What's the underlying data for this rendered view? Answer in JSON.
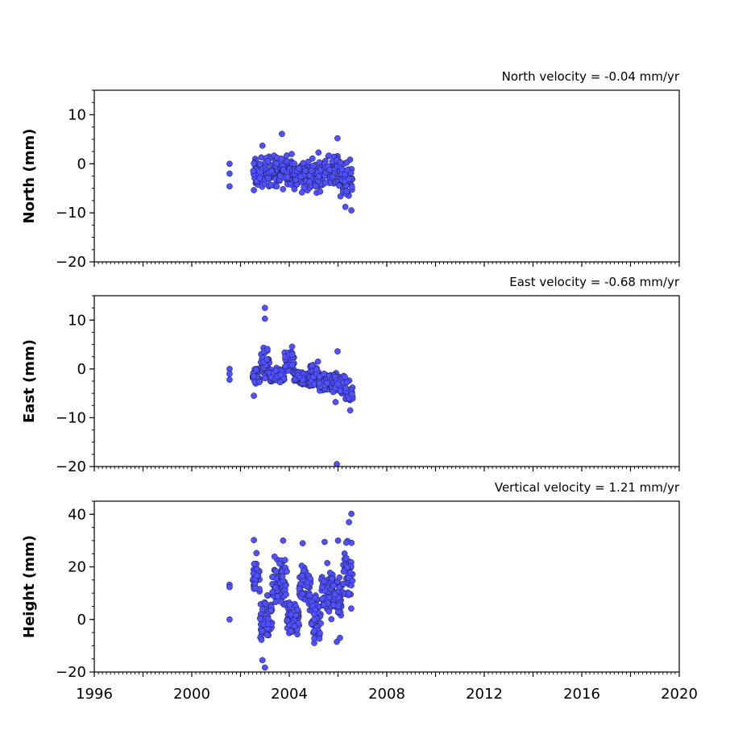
{
  "chart_data": [
    {
      "type": "scatter",
      "title": "North velocity = -0.04 mm/yr",
      "ylabel": "North (mm)",
      "xlabel": "",
      "xlim": [
        1996,
        2020
      ],
      "ylim": [
        -20,
        15
      ],
      "yticks": [
        {
          "v": 10,
          "label": "10"
        },
        {
          "v": 0,
          "label": "0"
        },
        {
          "v": -10,
          "label": "−10"
        },
        {
          "v": -20,
          "label": "−20"
        }
      ],
      "xtick_labels_shown": false,
      "marker_color": "#5050ff",
      "series": [
        {
          "points": [
            [
              2001.55,
              0.0
            ],
            [
              2001.55,
              -2.0
            ],
            [
              2001.55,
              -4.6
            ],
            [
              2003.7,
              6.1
            ],
            [
              2005.98,
              5.2
            ],
            [
              2006.55,
              -9.5
            ],
            [
              2002.9,
              3.7
            ],
            [
              2004.1,
              2.0
            ],
            [
              2005.2,
              2.3
            ],
            [
              2006.3,
              -8.8
            ]
          ],
          "bands": [
            {
              "x0": 2002.5,
              "x1": 2003.0,
              "lo": -6.5,
              "hi": 2.5
            },
            {
              "x0": 2003.0,
              "x1": 2003.6,
              "lo": -6.0,
              "hi": 3.0
            },
            {
              "x0": 2003.6,
              "x1": 2004.2,
              "lo": -6.0,
              "hi": 2.5
            },
            {
              "x0": 2004.2,
              "x1": 2004.8,
              "lo": -6.5,
              "hi": 2.0
            },
            {
              "x0": 2004.8,
              "x1": 2005.4,
              "lo": -6.5,
              "hi": 2.0
            },
            {
              "x0": 2005.4,
              "x1": 2006.0,
              "lo": -5.0,
              "hi": 3.0
            },
            {
              "x0": 2006.0,
              "x1": 2006.6,
              "lo": -8.0,
              "hi": 2.0
            }
          ]
        }
      ]
    },
    {
      "type": "scatter",
      "title": "East velocity = -0.68 mm/yr",
      "ylabel": "East (mm)",
      "xlabel": "",
      "xlim": [
        1996,
        2020
      ],
      "ylim": [
        -20,
        15
      ],
      "yticks": [
        {
          "v": 10,
          "label": "10"
        },
        {
          "v": 0,
          "label": "0"
        },
        {
          "v": -10,
          "label": "−10"
        },
        {
          "v": -20,
          "label": "−20"
        }
      ],
      "xtick_labels_shown": false,
      "marker_color": "#5050ff",
      "series": [
        {
          "points": [
            [
              2001.55,
              0.0
            ],
            [
              2001.55,
              -1.0
            ],
            [
              2001.55,
              -2.2
            ],
            [
              2003.0,
              12.5
            ],
            [
              2003.0,
              10.3
            ],
            [
              2005.95,
              -19.5
            ],
            [
              2005.98,
              3.6
            ],
            [
              2002.55,
              -5.5
            ],
            [
              2006.5,
              -8.5
            ],
            [
              2005.9,
              -6.8
            ]
          ],
          "bands": [
            {
              "x0": 2002.5,
              "x1": 2002.8,
              "lo": -4.0,
              "hi": 0.5
            },
            {
              "x0": 2002.8,
              "x1": 2003.2,
              "lo": -3.0,
              "hi": 5.5
            },
            {
              "x0": 2003.2,
              "x1": 2003.8,
              "lo": -3.5,
              "hi": 0.5
            },
            {
              "x0": 2003.8,
              "x1": 2004.2,
              "lo": -2.5,
              "hi": 5.5
            },
            {
              "x0": 2004.2,
              "x1": 2004.8,
              "lo": -4.5,
              "hi": 0.0
            },
            {
              "x0": 2004.8,
              "x1": 2005.2,
              "lo": -6.0,
              "hi": 3.0
            },
            {
              "x0": 2005.2,
              "x1": 2005.8,
              "lo": -5.5,
              "hi": 0.0
            },
            {
              "x0": 2005.8,
              "x1": 2006.3,
              "lo": -6.0,
              "hi": 0.0
            },
            {
              "x0": 2006.3,
              "x1": 2006.6,
              "lo": -8.0,
              "hi": -2.0
            }
          ]
        }
      ]
    },
    {
      "type": "scatter",
      "title": "Vertical velocity = 1.21 mm/yr",
      "ylabel": "Height (mm)",
      "xlabel": "",
      "xlim": [
        1996,
        2020
      ],
      "ylim": [
        -20,
        45
      ],
      "yticks": [
        {
          "v": 40,
          "label": "40"
        },
        {
          "v": 20,
          "label": "20"
        },
        {
          "v": 0,
          "label": "0"
        },
        {
          "v": -20,
          "label": "−20"
        }
      ],
      "xticks": [
        {
          "v": 1996,
          "label": "1996"
        },
        {
          "v": 2000,
          "label": "2000"
        },
        {
          "v": 2004,
          "label": "2004"
        },
        {
          "v": 2008,
          "label": "2008"
        },
        {
          "v": 2012,
          "label": "2012"
        },
        {
          "v": 2016,
          "label": "2016"
        },
        {
          "v": 2020,
          "label": "2020"
        }
      ],
      "xtick_labels_shown": true,
      "marker_color": "#5050ff",
      "series": [
        {
          "points": [
            [
              2001.55,
              13.2
            ],
            [
              2001.55,
              12.3
            ],
            [
              2001.55,
              0.0
            ],
            [
              2006.55,
              40.2
            ],
            [
              2006.45,
              37.0
            ],
            [
              2003.0,
              -18.3
            ],
            [
              2002.9,
              -15.5
            ],
            [
              2003.75,
              30.0
            ],
            [
              2004.55,
              29.0
            ],
            [
              2005.45,
              29.5
            ],
            [
              2006.0,
              30.0
            ],
            [
              2002.55,
              30.2
            ],
            [
              2005.95,
              -8.5
            ],
            [
              2006.08,
              -7.0
            ]
          ],
          "bands": [
            {
              "x0": 2002.5,
              "x1": 2002.8,
              "lo": 5.0,
              "hi": 27.0
            },
            {
              "x0": 2002.8,
              "x1": 2003.3,
              "lo": -11.0,
              "hi": 12.0
            },
            {
              "x0": 2003.3,
              "x1": 2003.9,
              "lo": 0.0,
              "hi": 28.0
            },
            {
              "x0": 2003.9,
              "x1": 2004.4,
              "lo": -10.0,
              "hi": 13.0
            },
            {
              "x0": 2004.4,
              "x1": 2004.9,
              "lo": 0.0,
              "hi": 24.0
            },
            {
              "x0": 2004.9,
              "x1": 2005.3,
              "lo": -14.0,
              "hi": 14.0
            },
            {
              "x0": 2005.3,
              "x1": 2005.8,
              "lo": -3.0,
              "hi": 25.0
            },
            {
              "x0": 2005.8,
              "x1": 2006.2,
              "lo": -3.0,
              "hi": 20.0
            },
            {
              "x0": 2006.2,
              "x1": 2006.6,
              "lo": 2.0,
              "hi": 33.0
            }
          ]
        }
      ]
    }
  ]
}
